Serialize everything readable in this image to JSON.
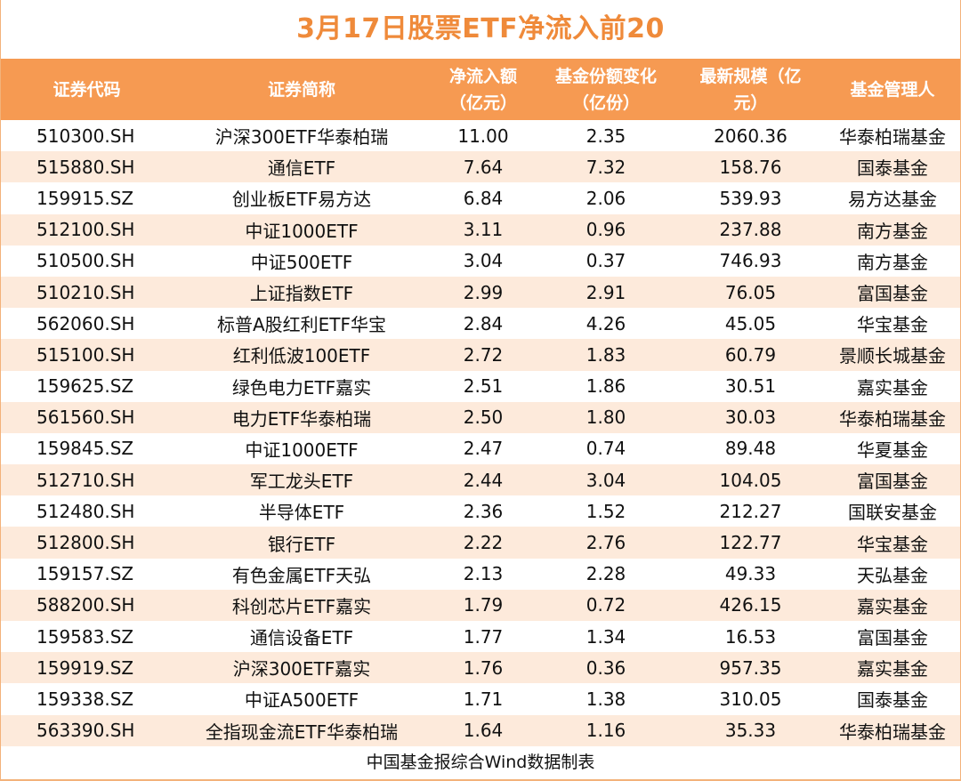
{
  "title": "3月17日股票ETF净流入前20",
  "headers": {
    "code": "证券代码",
    "name": "证券简称",
    "inflow_line1": "净流入额",
    "inflow_line2": "（亿元）",
    "share_line1": "基金份额变化",
    "share_line2": "（亿份）",
    "scale_line1": "最新规模（亿",
    "scale_line2": "元）",
    "manager": "基金管理人"
  },
  "rows": [
    {
      "code": "510300.SH",
      "name": "沪深300ETF华泰柏瑞",
      "inflow": "11.00",
      "share_change": "2.35",
      "scale": "2060.36",
      "manager": "华泰柏瑞基金"
    },
    {
      "code": "515880.SH",
      "name": "通信ETF",
      "inflow": "7.64",
      "share_change": "7.32",
      "scale": "158.76",
      "manager": "国泰基金"
    },
    {
      "code": "159915.SZ",
      "name": "创业板ETF易方达",
      "inflow": "6.84",
      "share_change": "2.06",
      "scale": "539.93",
      "manager": "易方达基金"
    },
    {
      "code": "512100.SH",
      "name": "中证1000ETF",
      "inflow": "3.11",
      "share_change": "0.96",
      "scale": "237.88",
      "manager": "南方基金"
    },
    {
      "code": "510500.SH",
      "name": "中证500ETF",
      "inflow": "3.04",
      "share_change": "0.37",
      "scale": "746.93",
      "manager": "南方基金"
    },
    {
      "code": "510210.SH",
      "name": "上证指数ETF",
      "inflow": "2.99",
      "share_change": "2.91",
      "scale": "76.05",
      "manager": "富国基金"
    },
    {
      "code": "562060.SH",
      "name": "标普A股红利ETF华宝",
      "inflow": "2.84",
      "share_change": "4.26",
      "scale": "45.05",
      "manager": "华宝基金"
    },
    {
      "code": "515100.SH",
      "name": "红利低波100ETF",
      "inflow": "2.72",
      "share_change": "1.83",
      "scale": "60.79",
      "manager": "景顺长城基金"
    },
    {
      "code": "159625.SZ",
      "name": "绿色电力ETF嘉实",
      "inflow": "2.51",
      "share_change": "1.86",
      "scale": "30.51",
      "manager": "嘉实基金"
    },
    {
      "code": "561560.SH",
      "name": "电力ETF华泰柏瑞",
      "inflow": "2.50",
      "share_change": "1.80",
      "scale": "30.03",
      "manager": "华泰柏瑞基金"
    },
    {
      "code": "159845.SZ",
      "name": "中证1000ETF",
      "inflow": "2.47",
      "share_change": "0.74",
      "scale": "89.48",
      "manager": "华夏基金"
    },
    {
      "code": "512710.SH",
      "name": "军工龙头ETF",
      "inflow": "2.44",
      "share_change": "3.04",
      "scale": "104.05",
      "manager": "富国基金"
    },
    {
      "code": "512480.SH",
      "name": "半导体ETF",
      "inflow": "2.36",
      "share_change": "1.52",
      "scale": "212.27",
      "manager": "国联安基金"
    },
    {
      "code": "512800.SH",
      "name": "银行ETF",
      "inflow": "2.22",
      "share_change": "2.76",
      "scale": "122.77",
      "manager": "华宝基金"
    },
    {
      "code": "159157.SZ",
      "name": "有色金属ETF天弘",
      "inflow": "2.13",
      "share_change": "2.28",
      "scale": "49.33",
      "manager": "天弘基金"
    },
    {
      "code": "588200.SH",
      "name": "科创芯片ETF嘉实",
      "inflow": "1.79",
      "share_change": "0.72",
      "scale": "426.15",
      "manager": "嘉实基金"
    },
    {
      "code": "159583.SZ",
      "name": "通信设备ETF",
      "inflow": "1.77",
      "share_change": "1.34",
      "scale": "16.53",
      "manager": "富国基金"
    },
    {
      "code": "159919.SZ",
      "name": "沪深300ETF嘉实",
      "inflow": "1.76",
      "share_change": "0.36",
      "scale": "957.35",
      "manager": "嘉实基金"
    },
    {
      "code": "159338.SZ",
      "name": "中证A500ETF",
      "inflow": "1.71",
      "share_change": "1.38",
      "scale": "310.05",
      "manager": "国泰基金"
    },
    {
      "code": "563390.SH",
      "name": "全指现金流ETF华泰柏瑞",
      "inflow": "1.64",
      "share_change": "1.16",
      "scale": "35.33",
      "manager": "华泰柏瑞基金"
    }
  ],
  "footer": "中国基金报综合Wind数据制表",
  "colors": {
    "title": "#ef8a3a",
    "header_bg": "#f69a52",
    "stripe": "#fdeadb",
    "border": "#f3b27a"
  }
}
